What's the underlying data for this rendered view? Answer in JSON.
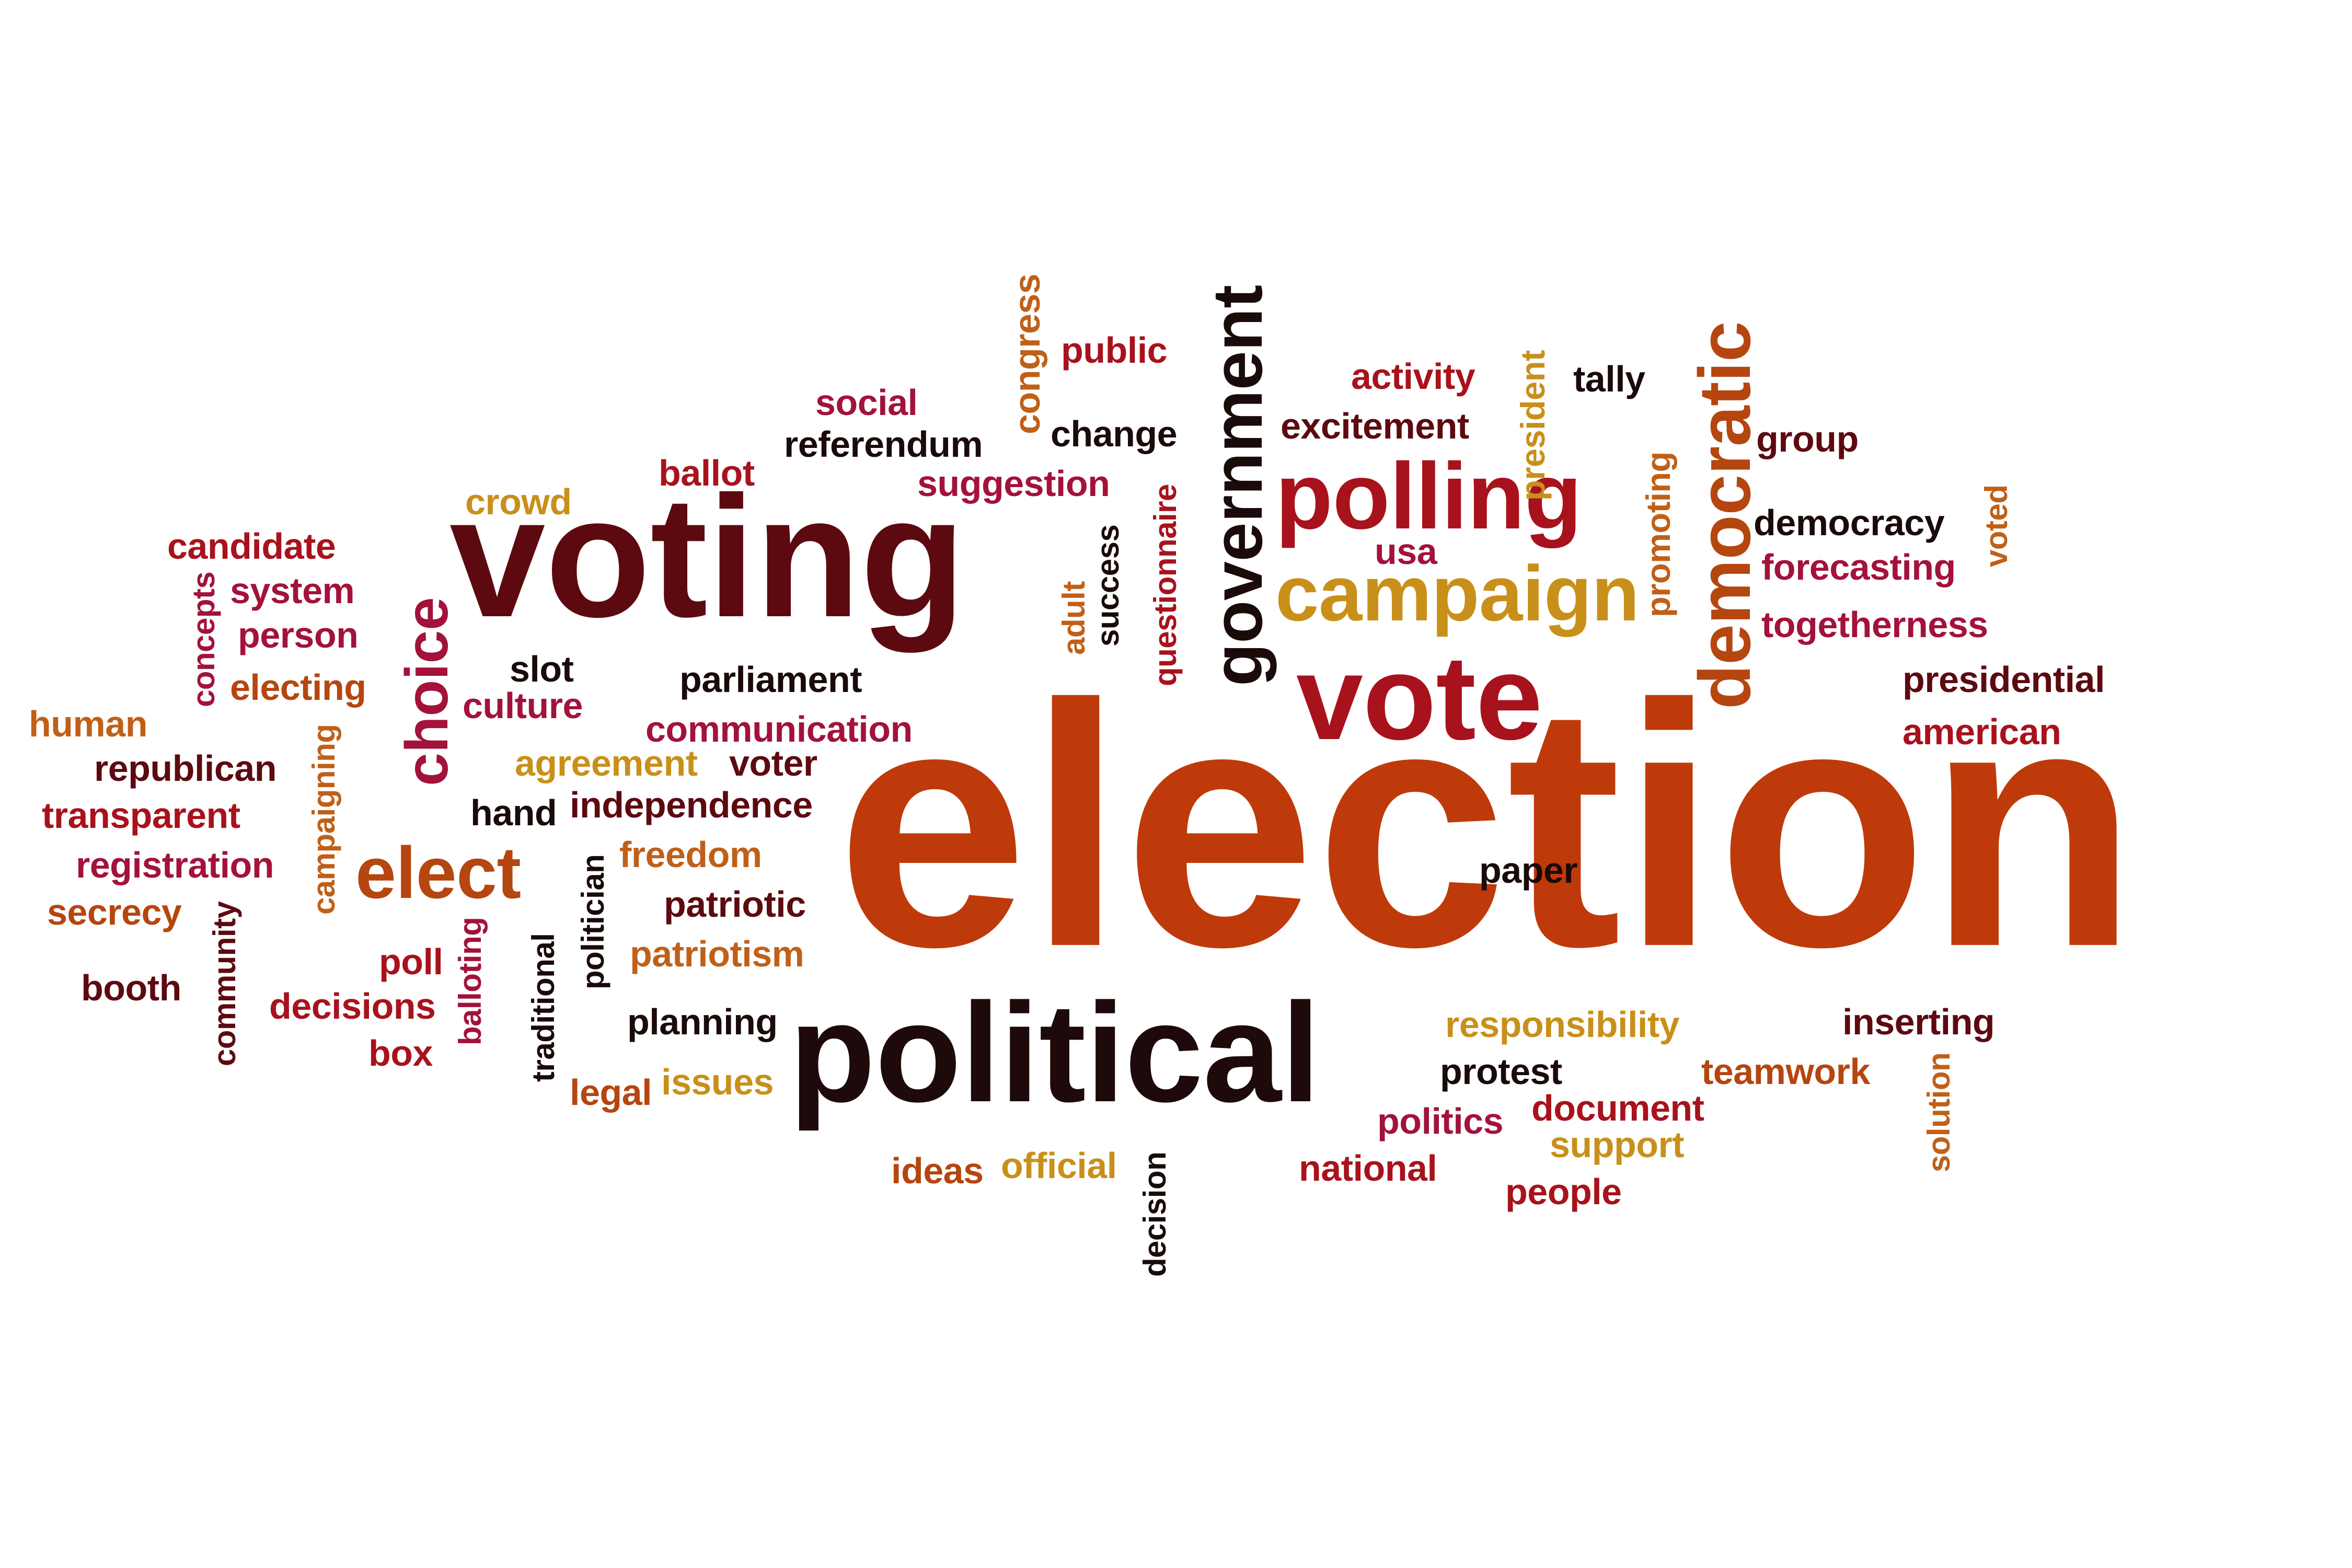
{
  "colors": {
    "background": "#ffffff",
    "orange": "#bf3a0a",
    "dark_red": "#5c0a10",
    "red": "#a8121c",
    "magenta": "#a3123a",
    "gold": "#c8901a",
    "black": "#1a0a0a",
    "rust": "#b5460f"
  },
  "words": [
    {
      "text": "election",
      "color": "#bf3a0a"
    },
    {
      "text": "voting",
      "color": "#5c0a10"
    },
    {
      "text": "political",
      "color": "#1e0a0a"
    },
    {
      "text": "vote",
      "color": "#a8121c"
    },
    {
      "text": "polling",
      "color": "#a8121c"
    },
    {
      "text": "campaign",
      "color": "#c8901a"
    },
    {
      "text": "government",
      "color": "#1a0a0a"
    },
    {
      "text": "democratic",
      "color": "#b5460f"
    },
    {
      "text": "choice",
      "color": "#a3123a"
    },
    {
      "text": "elect",
      "color": "#b5460f"
    },
    {
      "text": "social",
      "color": "#a3123a"
    },
    {
      "text": "public",
      "color": "#a8121c"
    },
    {
      "text": "congress",
      "color": "#c06018"
    },
    {
      "text": "referendum",
      "color": "#1a0a0a"
    },
    {
      "text": "change",
      "color": "#1a0a0a"
    },
    {
      "text": "ballot",
      "color": "#a8121c"
    },
    {
      "text": "suggestion",
      "color": "#a3123a"
    },
    {
      "text": "crowd",
      "color": "#c8901a"
    },
    {
      "text": "activity",
      "color": "#a8121c"
    },
    {
      "text": "tally",
      "color": "#1a0a0a"
    },
    {
      "text": "excitement",
      "color": "#5c0a10"
    },
    {
      "text": "president",
      "color": "#c8901a"
    },
    {
      "text": "group",
      "color": "#5c0a10"
    },
    {
      "text": "promoting",
      "color": "#c06018"
    },
    {
      "text": "democracy",
      "color": "#1a0a0a"
    },
    {
      "text": "voted",
      "color": "#c06018"
    },
    {
      "text": "forecasting",
      "color": "#a3123a"
    },
    {
      "text": "usa",
      "color": "#a3123a"
    },
    {
      "text": "togetherness",
      "color": "#a3123a"
    },
    {
      "text": "candidate",
      "color": "#a8121c"
    },
    {
      "text": "system",
      "color": "#a3123a"
    },
    {
      "text": "person",
      "color": "#a3123a"
    },
    {
      "text": "concepts",
      "color": "#a3123a"
    },
    {
      "text": "electing",
      "color": "#b5460f"
    },
    {
      "text": "human",
      "color": "#c06018"
    },
    {
      "text": "republican",
      "color": "#5c0a10"
    },
    {
      "text": "transparent",
      "color": "#a8121c"
    },
    {
      "text": "registration",
      "color": "#a3123a"
    },
    {
      "text": "secrecy",
      "color": "#b5460f"
    },
    {
      "text": "booth",
      "color": "#5c0a10"
    },
    {
      "text": "community",
      "color": "#5c0a10"
    },
    {
      "text": "campaigning",
      "color": "#c06018"
    },
    {
      "text": "poll",
      "color": "#a8121c"
    },
    {
      "text": "decisions",
      "color": "#a8121c"
    },
    {
      "text": "box",
      "color": "#a8121c"
    },
    {
      "text": "balloting",
      "color": "#a3123a"
    },
    {
      "text": "slot",
      "color": "#1a0a0a"
    },
    {
      "text": "culture",
      "color": "#a3123a"
    },
    {
      "text": "parliament",
      "color": "#1a0a0a"
    },
    {
      "text": "communication",
      "color": "#a3123a"
    },
    {
      "text": "agreement",
      "color": "#c8901a"
    },
    {
      "text": "voter",
      "color": "#5c0a10"
    },
    {
      "text": "hand",
      "color": "#1a0a0a"
    },
    {
      "text": "independence",
      "color": "#5c0a10"
    },
    {
      "text": "freedom",
      "color": "#c06018"
    },
    {
      "text": "patriotic",
      "color": "#5c0a10"
    },
    {
      "text": "patriotism",
      "color": "#c06018"
    },
    {
      "text": "politician",
      "color": "#1a0a0a"
    },
    {
      "text": "traditional",
      "color": "#1a0a0a"
    },
    {
      "text": "planning",
      "color": "#1a0a0a"
    },
    {
      "text": "legal",
      "color": "#b5460f"
    },
    {
      "text": "issues",
      "color": "#c8901a"
    },
    {
      "text": "ideas",
      "color": "#b5460f"
    },
    {
      "text": "official",
      "color": "#c8901a"
    },
    {
      "text": "decision",
      "color": "#1a0a0a"
    },
    {
      "text": "adult",
      "color": "#c06018"
    },
    {
      "text": "success",
      "color": "#1a0a0a"
    },
    {
      "text": "questionnaire",
      "color": "#a8121c"
    },
    {
      "text": "presidential",
      "color": "#5c0a10"
    },
    {
      "text": "american",
      "color": "#a8121c"
    },
    {
      "text": "paper",
      "color": "#1a0a0a"
    },
    {
      "text": "responsibility",
      "color": "#c8901a"
    },
    {
      "text": "inserting",
      "color": "#5c0a10"
    },
    {
      "text": "protest",
      "color": "#1a0a0a"
    },
    {
      "text": "teamwork",
      "color": "#b5460f"
    },
    {
      "text": "politics",
      "color": "#a3123a"
    },
    {
      "text": "document",
      "color": "#a8121c"
    },
    {
      "text": "support",
      "color": "#c8901a"
    },
    {
      "text": "national",
      "color": "#a8121c"
    },
    {
      "text": "people",
      "color": "#a8121c"
    },
    {
      "text": "solution",
      "color": "#c06018"
    }
  ]
}
